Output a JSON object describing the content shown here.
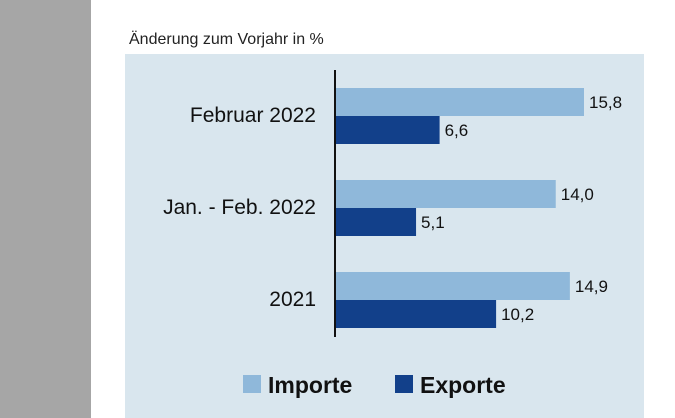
{
  "subtitle": "Änderung zum Vorjahr in %",
  "colors": {
    "plot_background": "#d9e6ee",
    "importe": "#8fb8da",
    "exporte": "#12408a",
    "axis": "#111111",
    "left_band": "#a6a6a6"
  },
  "chart_data": {
    "type": "bar",
    "orientation": "horizontal",
    "title": "",
    "xlabel": "",
    "ylabel": "",
    "categories": [
      "Februar 2022",
      "Jan. - Feb. 2022",
      "2021"
    ],
    "series": [
      {
        "name": "Importe",
        "values": [
          15.8,
          14.0,
          14.9
        ],
        "labels": [
          "15,8",
          "14,0",
          "14,9"
        ]
      },
      {
        "name": "Exporte",
        "values": [
          6.6,
          5.1,
          10.2
        ],
        "labels": [
          "6,6",
          "5,1",
          "10,2"
        ]
      }
    ],
    "xlim": [
      0,
      20
    ],
    "grid": false,
    "legend_position": "bottom"
  }
}
